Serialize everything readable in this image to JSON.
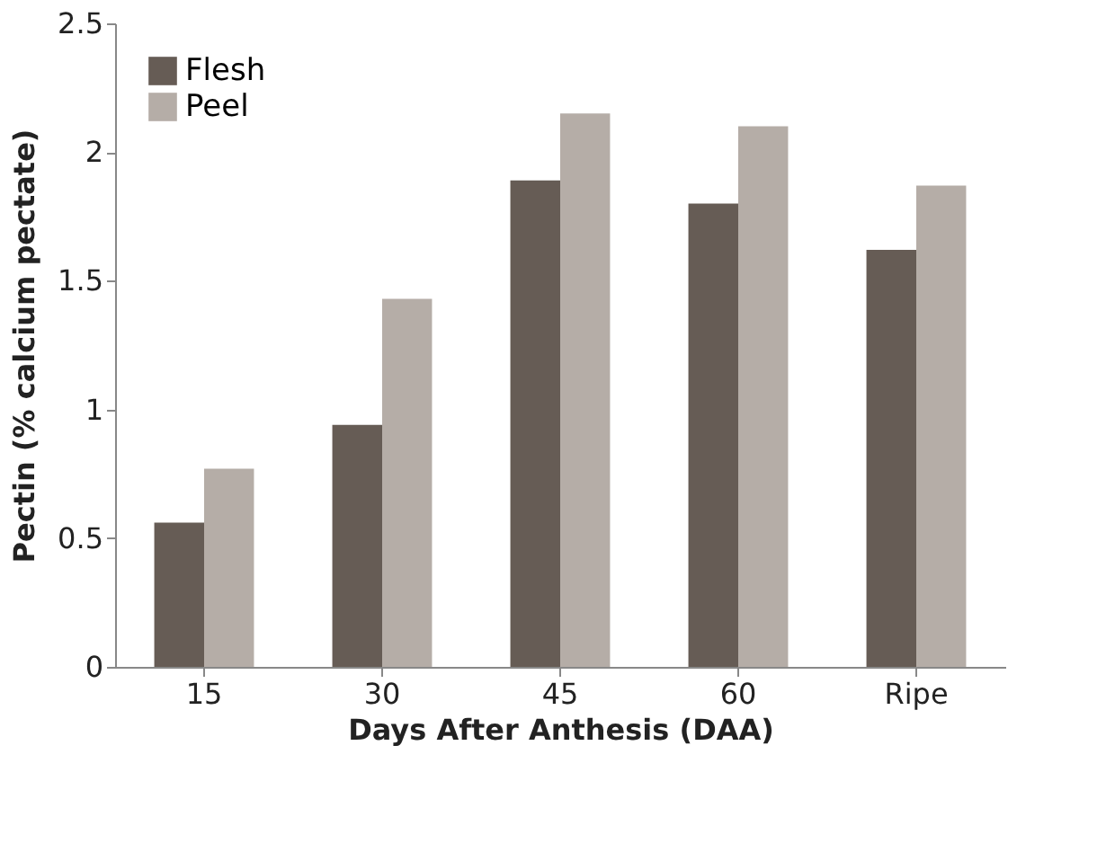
{
  "chart_data": {
    "type": "bar",
    "xlabel": "Days After  Anthesis (DAA)",
    "ylabel": "Pectin (% calcium pectate)",
    "categories": [
      "15",
      "30",
      "45",
      "60",
      "Ripe"
    ],
    "series": [
      {
        "name": "Flesh",
        "color": "#665c55",
        "values": [
          0.56,
          0.94,
          1.89,
          1.8,
          1.62
        ]
      },
      {
        "name": "Peel",
        "color": "#b5ada7",
        "values": [
          0.77,
          1.43,
          2.15,
          2.1,
          1.87
        ]
      }
    ],
    "ylim": [
      0,
      2.5
    ],
    "yticks": [
      0,
      0.5,
      1,
      1.5,
      2,
      2.5
    ],
    "grid": false,
    "legend": "top left"
  }
}
